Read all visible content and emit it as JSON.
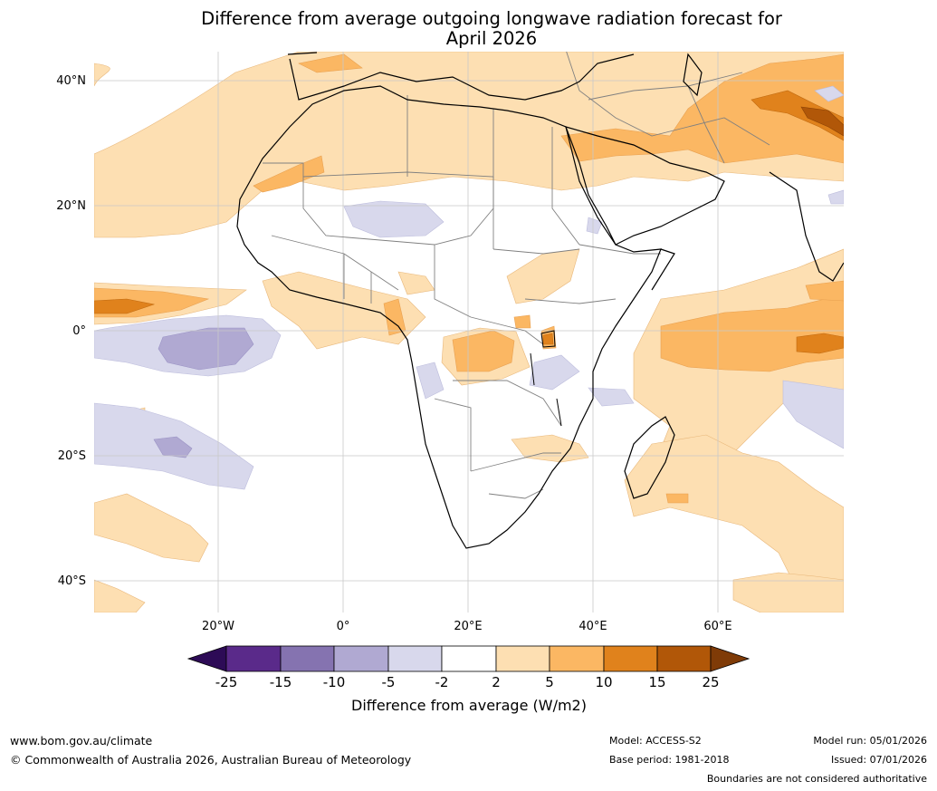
{
  "title": {
    "line1": "Difference from average outgoing longwave radiation forecast for",
    "line2": "April 2026"
  },
  "map": {
    "region": "Africa and surrounding oceans",
    "lat_labels": [
      "40°N",
      "20°N",
      "0°",
      "20°S",
      "40°S"
    ],
    "lon_labels": [
      "20°W",
      "0°",
      "20°E",
      "40°E",
      "60°E"
    ]
  },
  "legend": {
    "title": "Difference from average (W/m2)",
    "ticks": [
      "-25",
      "-15",
      "-10",
      "-5",
      "-2",
      "2",
      "5",
      "10",
      "15",
      "25"
    ],
    "colors": [
      "#2d0b56",
      "#5a2a8a",
      "#8573b0",
      "#b0a9d2",
      "#d8d8ec",
      "#ffffff",
      "#fddfb2",
      "#fbb763",
      "#e0821c",
      "#b15708",
      "#7f3b07"
    ]
  },
  "footer": {
    "website": "www.bom.gov.au/climate",
    "copyright": "© Commonwealth of Australia 2026, Australian Bureau of Meteorology",
    "model": "Model: ACCESS-S2",
    "base_period": "Base period: 1981-2018",
    "model_run": "Model run: 05/01/2026",
    "issued": "Issued: 07/01/2026",
    "disclaimer": "Boundaries are not considered authoritative"
  }
}
